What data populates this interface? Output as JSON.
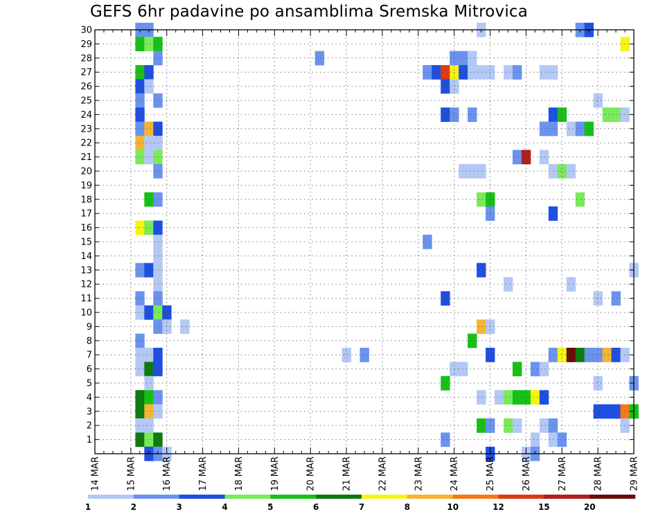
{
  "chart_data": {
    "type": "heatmap",
    "title": "GEFS 6hr padavine po ansamblima Sremska Mitrovica",
    "x_tick_labels": [
      "14 MAR",
      "15 MAR",
      "16 MAR",
      "17 MAR",
      "18 MAR",
      "19 MAR",
      "20 MAR",
      "21 MAR",
      "22 MAR",
      "23 MAR",
      "24 MAR",
      "25 MAR",
      "26 MAR",
      "27 MAR",
      "28 MAR",
      "29 MAR"
    ],
    "y_tick_labels": [
      "1",
      "2",
      "3",
      "4",
      "5",
      "6",
      "7",
      "8",
      "9",
      "10",
      "11",
      "12",
      "13",
      "14",
      "15",
      "16",
      "17",
      "18",
      "19",
      "20",
      "21",
      "22",
      "23",
      "24",
      "25",
      "26",
      "27",
      "28",
      "29",
      "30"
    ],
    "xlim_days": [
      14,
      29
    ],
    "ylim_members": [
      0,
      30
    ],
    "grid": "dotted",
    "colorbar": {
      "position": "bottom",
      "tick_labels": [
        "1",
        "2",
        "3",
        "4",
        "5",
        "6",
        "7",
        "8",
        "10",
        "12",
        "15",
        "20"
      ],
      "colors": [
        "#b3c8f5",
        "#6a93ee",
        "#1f4fe0",
        "#7aea5a",
        "#17c017",
        "#0f7a0f",
        "#f5f511",
        "#f5b531",
        "#f57a11",
        "#e03a11",
        "#b21d1d",
        "#6e0a0a"
      ]
    },
    "cells_format": "[member, day, level_index]",
    "cells": [
      [
        30,
        15.25,
        1
      ],
      [
        30,
        15.5,
        1
      ],
      [
        30,
        24.75,
        0
      ],
      [
        30,
        27.5,
        1
      ],
      [
        30,
        27.75,
        2
      ],
      [
        29,
        15.25,
        4
      ],
      [
        29,
        15.5,
        3
      ],
      [
        29,
        15.75,
        4
      ],
      [
        29,
        28.75,
        6
      ],
      [
        28,
        15.75,
        1
      ],
      [
        28,
        20.25,
        1
      ],
      [
        28,
        24.0,
        1
      ],
      [
        28,
        24.25,
        1
      ],
      [
        28,
        24.5,
        0
      ],
      [
        27,
        15.25,
        4
      ],
      [
        27,
        15.5,
        2
      ],
      [
        27,
        23.25,
        1
      ],
      [
        27,
        23.5,
        2
      ],
      [
        27,
        23.75,
        9
      ],
      [
        27,
        24.0,
        6
      ],
      [
        27,
        24.25,
        2
      ],
      [
        27,
        24.5,
        0
      ],
      [
        27,
        24.75,
        0
      ],
      [
        27,
        25.0,
        0
      ],
      [
        27,
        25.5,
        0
      ],
      [
        27,
        25.75,
        1
      ],
      [
        27,
        26.5,
        0
      ],
      [
        27,
        26.75,
        0
      ],
      [
        26,
        15.25,
        2
      ],
      [
        26,
        15.5,
        0
      ],
      [
        26,
        23.75,
        2
      ],
      [
        26,
        24.0,
        0
      ],
      [
        25,
        15.25,
        1
      ],
      [
        25,
        15.75,
        1
      ],
      [
        25,
        28.0,
        0
      ],
      [
        24,
        15.25,
        2
      ],
      [
        24,
        23.75,
        2
      ],
      [
        24,
        24.0,
        1
      ],
      [
        24,
        24.5,
        1
      ],
      [
        24,
        26.75,
        2
      ],
      [
        24,
        27.0,
        4
      ],
      [
        24,
        28.25,
        3
      ],
      [
        24,
        28.5,
        3
      ],
      [
        24,
        28.75,
        0
      ],
      [
        23,
        15.25,
        1
      ],
      [
        23,
        15.5,
        7
      ],
      [
        23,
        15.75,
        2
      ],
      [
        23,
        26.5,
        1
      ],
      [
        23,
        26.75,
        1
      ],
      [
        23,
        27.25,
        0
      ],
      [
        23,
        27.5,
        1
      ],
      [
        23,
        27.75,
        4
      ],
      [
        22,
        15.25,
        7
      ],
      [
        22,
        15.5,
        0
      ],
      [
        22,
        15.75,
        0
      ],
      [
        21,
        15.25,
        3
      ],
      [
        21,
        15.5,
        0
      ],
      [
        21,
        15.75,
        3
      ],
      [
        21,
        25.75,
        1
      ],
      [
        21,
        26.0,
        10
      ],
      [
        21,
        26.5,
        0
      ],
      [
        20,
        15.75,
        1
      ],
      [
        20,
        24.25,
        0
      ],
      [
        20,
        24.5,
        0
      ],
      [
        20,
        24.75,
        0
      ],
      [
        20,
        26.75,
        0
      ],
      [
        20,
        27.0,
        3
      ],
      [
        20,
        27.25,
        0
      ],
      [
        18,
        15.5,
        4
      ],
      [
        18,
        15.75,
        1
      ],
      [
        18,
        24.75,
        3
      ],
      [
        18,
        25.0,
        4
      ],
      [
        18,
        27.5,
        3
      ],
      [
        17,
        25.0,
        1
      ],
      [
        17,
        26.75,
        2
      ],
      [
        16,
        15.25,
        6
      ],
      [
        16,
        15.5,
        3
      ],
      [
        16,
        15.75,
        2
      ],
      [
        15,
        15.75,
        0
      ],
      [
        15,
        23.25,
        1
      ],
      [
        14,
        15.75,
        0
      ],
      [
        13,
        15.25,
        1
      ],
      [
        13,
        15.5,
        2
      ],
      [
        13,
        15.75,
        0
      ],
      [
        13,
        24.75,
        2
      ],
      [
        13,
        29.0,
        0
      ],
      [
        12,
        15.75,
        0
      ],
      [
        12,
        25.5,
        0
      ],
      [
        12,
        27.25,
        0
      ],
      [
        11,
        15.25,
        1
      ],
      [
        11,
        15.75,
        1
      ],
      [
        11,
        23.75,
        2
      ],
      [
        11,
        28.0,
        0
      ],
      [
        11,
        28.5,
        1
      ],
      [
        10,
        15.25,
        0
      ],
      [
        10,
        15.5,
        2
      ],
      [
        10,
        15.75,
        3
      ],
      [
        10,
        16.0,
        2
      ],
      [
        9,
        15.75,
        1
      ],
      [
        9,
        16.0,
        0
      ],
      [
        9,
        16.5,
        0
      ],
      [
        9,
        24.75,
        7
      ],
      [
        9,
        25.0,
        0
      ],
      [
        8,
        15.25,
        1
      ],
      [
        8,
        24.5,
        4
      ],
      [
        7,
        15.25,
        0
      ],
      [
        7,
        15.5,
        0
      ],
      [
        7,
        15.75,
        2
      ],
      [
        7,
        21.0,
        0
      ],
      [
        7,
        21.5,
        1
      ],
      [
        7,
        25.0,
        2
      ],
      [
        7,
        26.75,
        1
      ],
      [
        7,
        27.0,
        6
      ],
      [
        7,
        27.25,
        11
      ],
      [
        7,
        27.5,
        5
      ],
      [
        7,
        27.75,
        1
      ],
      [
        7,
        28.0,
        1
      ],
      [
        7,
        28.25,
        7
      ],
      [
        7,
        28.5,
        2
      ],
      [
        7,
        28.75,
        0
      ],
      [
        6,
        15.25,
        0
      ],
      [
        6,
        15.5,
        5
      ],
      [
        6,
        15.75,
        2
      ],
      [
        6,
        24.0,
        0
      ],
      [
        6,
        24.25,
        0
      ],
      [
        6,
        25.75,
        4
      ],
      [
        6,
        26.25,
        1
      ],
      [
        6,
        26.5,
        0
      ],
      [
        5,
        15.5,
        0
      ],
      [
        5,
        23.75,
        4
      ],
      [
        5,
        28.0,
        0
      ],
      [
        5,
        29.0,
        1
      ],
      [
        4,
        15.25,
        5
      ],
      [
        4,
        15.5,
        4
      ],
      [
        4,
        15.75,
        1
      ],
      [
        4,
        24.75,
        0
      ],
      [
        4,
        25.25,
        0
      ],
      [
        4,
        25.5,
        3
      ],
      [
        4,
        25.75,
        4
      ],
      [
        4,
        26.0,
        4
      ],
      [
        4,
        26.25,
        6
      ],
      [
        4,
        26.5,
        2
      ],
      [
        3,
        15.25,
        5
      ],
      [
        3,
        15.5,
        7
      ],
      [
        3,
        15.75,
        0
      ],
      [
        3,
        28.0,
        2
      ],
      [
        3,
        28.25,
        2
      ],
      [
        3,
        28.5,
        2
      ],
      [
        3,
        28.75,
        8
      ],
      [
        3,
        29.0,
        4
      ],
      [
        2,
        15.25,
        0
      ],
      [
        2,
        15.5,
        0
      ],
      [
        2,
        24.75,
        4
      ],
      [
        2,
        25.0,
        1
      ],
      [
        2,
        25.5,
        3
      ],
      [
        2,
        25.75,
        0
      ],
      [
        2,
        26.5,
        0
      ],
      [
        2,
        26.75,
        1
      ],
      [
        2,
        28.75,
        0
      ],
      [
        1,
        15.25,
        5
      ],
      [
        1,
        15.5,
        3
      ],
      [
        1,
        15.75,
        5
      ],
      [
        1,
        23.75,
        1
      ],
      [
        1,
        26.25,
        0
      ],
      [
        1,
        26.75,
        0
      ],
      [
        1,
        27.0,
        1
      ],
      [
        0,
        15.5,
        2
      ],
      [
        0,
        15.75,
        1
      ],
      [
        0,
        16.0,
        0
      ],
      [
        0,
        25.0,
        2
      ],
      [
        0,
        26.0,
        0
      ],
      [
        0,
        26.25,
        1
      ]
    ]
  }
}
